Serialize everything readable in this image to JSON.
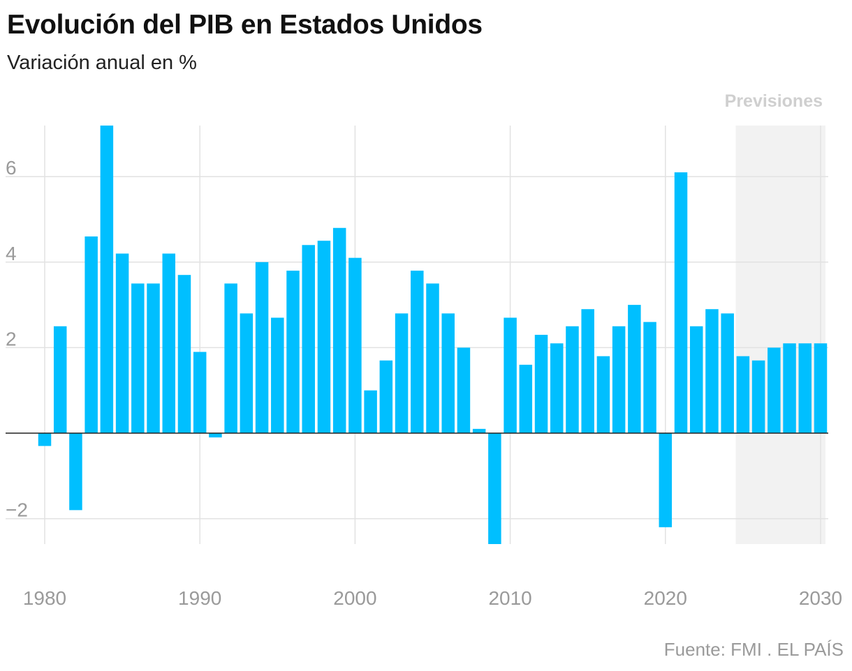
{
  "title": "Evolución del PIB en Estados Unidos",
  "subtitle": "Variación anual en %",
  "source": "Fuente: FMI . EL PAÍS",
  "colors": {
    "bar": "#00bfff",
    "grid": "#e2e2e2",
    "forecast_bg": "#f2f2f2",
    "zero_line": "#222222",
    "tick_text": "#9a9a9a",
    "forecast_label": "#cfcfcf"
  },
  "chart_data": {
    "type": "bar",
    "title": "Evolución del PIB en Estados Unidos",
    "subtitle": "Variación anual en %",
    "xlabel": "",
    "ylabel": "",
    "x": [
      1980,
      1981,
      1982,
      1983,
      1984,
      1985,
      1986,
      1987,
      1988,
      1989,
      1990,
      1991,
      1992,
      1993,
      1994,
      1995,
      1996,
      1997,
      1998,
      1999,
      2000,
      2001,
      2002,
      2003,
      2004,
      2005,
      2006,
      2007,
      2008,
      2009,
      2010,
      2011,
      2012,
      2013,
      2014,
      2015,
      2016,
      2017,
      2018,
      2019,
      2020,
      2021,
      2022,
      2023,
      2024,
      2025,
      2026,
      2027,
      2028,
      2029,
      2030
    ],
    "values": [
      -0.3,
      2.5,
      -1.8,
      4.6,
      7.2,
      4.2,
      3.5,
      3.5,
      4.2,
      3.7,
      1.9,
      -0.1,
      3.5,
      2.8,
      4.0,
      2.7,
      3.8,
      4.4,
      4.5,
      4.8,
      4.1,
      1.0,
      1.7,
      2.8,
      3.8,
      3.5,
      2.8,
      2.0,
      0.1,
      -2.6,
      2.7,
      1.6,
      2.3,
      2.1,
      2.5,
      2.9,
      1.8,
      2.5,
      3.0,
      2.6,
      -2.2,
      6.1,
      2.5,
      2.9,
      2.8,
      1.8,
      1.7,
      2.0,
      2.1,
      2.1,
      2.1
    ],
    "ylim": [
      -2.6,
      7.2
    ],
    "xlim": [
      1980,
      2030
    ],
    "y_ticks": [
      -2,
      2,
      4,
      6
    ],
    "y_tick_labels": [
      "−2",
      "2",
      "4",
      "6"
    ],
    "x_ticks": [
      1980,
      1990,
      2000,
      2010,
      2020,
      2030
    ],
    "x_tick_labels": [
      "1980",
      "1990",
      "2000",
      "2010",
      "2020",
      "2030"
    ],
    "grid": true,
    "forecast": {
      "label": "Previsiones",
      "from": 2025,
      "to": 2030
    }
  }
}
